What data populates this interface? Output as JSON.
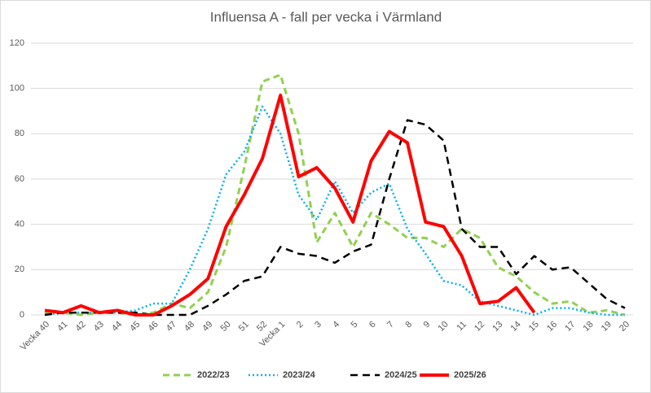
{
  "chart_data": {
    "type": "line",
    "title": "Influensa A - fall per vecka i Värmland",
    "categories": [
      "Vecka 40",
      "41",
      "42",
      "43",
      "44",
      "45",
      "46",
      "47",
      "48",
      "49",
      "50",
      "51",
      "52",
      "Vecka 1",
      "2",
      "3",
      "4",
      "5",
      "6",
      "7",
      "8",
      "9",
      "10",
      "11",
      "12",
      "13",
      "14",
      "15",
      "16",
      "17",
      "18",
      "19",
      "20"
    ],
    "series": [
      {
        "name": "2022/23",
        "color": "#92d050",
        "dash": "8,5",
        "width": 3,
        "values": [
          1,
          1,
          0,
          1,
          1,
          0,
          1,
          5,
          3,
          10,
          30,
          65,
          103,
          106,
          80,
          32,
          45,
          30,
          45,
          40,
          34,
          34,
          30,
          38,
          34,
          21,
          17,
          10,
          5,
          6,
          1,
          2,
          0
        ]
      },
      {
        "name": "2023/24",
        "color": "#00b0f0",
        "dash": "2,3",
        "width": 2.5,
        "values": [
          0,
          1,
          1,
          1,
          1,
          2,
          5,
          5,
          20,
          38,
          62,
          72,
          92,
          80,
          53,
          42,
          59,
          45,
          54,
          58,
          38,
          27,
          15,
          13,
          6,
          4,
          2,
          0,
          3,
          3,
          1,
          0,
          0
        ]
      },
      {
        "name": "2024/25",
        "color": "#000000",
        "dash": "9,6",
        "width": 2.5,
        "values": [
          0,
          1,
          1,
          1,
          1,
          1,
          0,
          0,
          0,
          4,
          9,
          15,
          17,
          30,
          27,
          26,
          23,
          28,
          31,
          60,
          86,
          84,
          77,
          38,
          30,
          30,
          18,
          26,
          20,
          21,
          14,
          7,
          3
        ]
      },
      {
        "name": "2025/26",
        "color": "#ff0000",
        "dash": "none",
        "width": 4,
        "values": [
          2,
          1,
          4,
          1,
          2,
          0,
          0,
          4,
          9,
          16,
          39,
          53,
          69,
          97,
          61,
          65,
          56,
          41,
          68,
          81,
          76,
          41,
          39,
          26,
          5,
          6,
          12,
          1,
          null,
          null,
          null,
          null,
          null
        ]
      }
    ],
    "ylim": [
      0,
      120
    ],
    "yticks": [
      0,
      20,
      40,
      60,
      80,
      100,
      120
    ],
    "grid": true
  }
}
